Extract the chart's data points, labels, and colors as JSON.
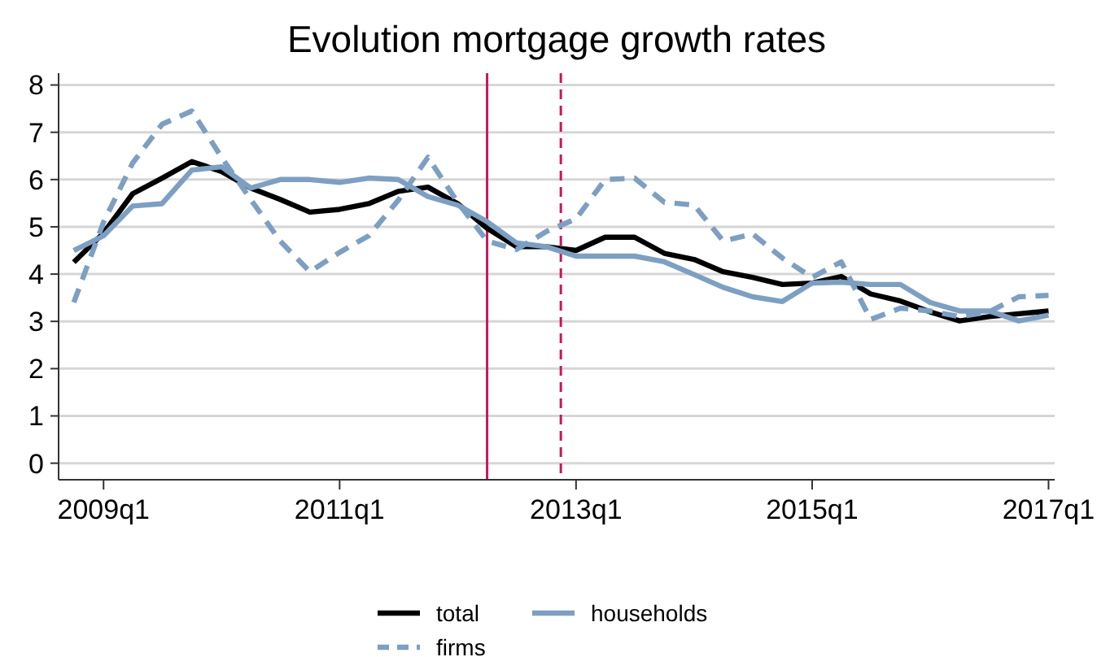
{
  "chart_data": {
    "type": "line",
    "title": "Evolution mortgage growth rates",
    "x": [
      "2008-10",
      "2009-01",
      "2009-04",
      "2009-07",
      "2009-10",
      "2010-01",
      "2010-04",
      "2010-07",
      "2010-10",
      "2011-01",
      "2011-04",
      "2011-07",
      "2011-10",
      "2012-01",
      "2012-04",
      "2012-07",
      "2012-10",
      "2013-01",
      "2013-04",
      "2013-07",
      "2013-10",
      "2014-01",
      "2014-04",
      "2014-07",
      "2014-10",
      "2015-01",
      "2015-04",
      "2015-07",
      "2015-10",
      "2016-01",
      "2016-04",
      "2016-07",
      "2016-10",
      "2017-01"
    ],
    "series": [
      {
        "name": "total",
        "color": "#000000",
        "line_style": "solid",
        "values": [
          4.25,
          4.87,
          5.7,
          6.03,
          6.38,
          6.17,
          5.82,
          5.58,
          5.31,
          5.37,
          5.49,
          5.75,
          5.84,
          5.49,
          4.97,
          4.58,
          4.58,
          4.5,
          4.78,
          4.78,
          4.44,
          4.31,
          4.05,
          3.93,
          3.78,
          3.81,
          3.95,
          3.58,
          3.43,
          3.2,
          3.01,
          3.1,
          3.16,
          3.22
        ]
      },
      {
        "name": "firms",
        "color": "#7d9fc2",
        "line_style": "dashed",
        "values": [
          3.4,
          5.1,
          6.35,
          7.17,
          7.45,
          6.47,
          5.58,
          4.7,
          4.05,
          4.46,
          4.81,
          5.56,
          6.47,
          5.52,
          4.7,
          4.52,
          4.9,
          5.17,
          6.0,
          6.03,
          5.52,
          5.46,
          4.7,
          4.85,
          4.34,
          3.93,
          4.26,
          3.04,
          3.28,
          3.22,
          3.1,
          3.2,
          3.52,
          3.55
        ]
      },
      {
        "name": "households",
        "color": "#7d9fc2",
        "line_style": "solid",
        "values": [
          4.5,
          4.81,
          5.44,
          5.49,
          6.2,
          6.27,
          5.82,
          6.0,
          6.0,
          5.94,
          6.03,
          6.0,
          5.64,
          5.46,
          5.11,
          4.66,
          4.58,
          4.38,
          4.38,
          4.38,
          4.26,
          3.99,
          3.72,
          3.52,
          3.42,
          3.81,
          3.83,
          3.78,
          3.78,
          3.4,
          3.22,
          3.22,
          3.01,
          3.13
        ]
      }
    ],
    "xlim": [
      "2008-08-15",
      "2017-01-20"
    ],
    "xticks": [
      {
        "value": "2009-01",
        "label": "2009q1"
      },
      {
        "value": "2011-01",
        "label": "2011q1"
      },
      {
        "value": "2013-01",
        "label": "2013q1"
      },
      {
        "value": "2015-01",
        "label": "2015q1"
      },
      {
        "value": "2017-01",
        "label": "2017q1"
      }
    ],
    "ylim": [
      -0.35,
      8.25
    ],
    "yticks": [
      0,
      1,
      2,
      3,
      4,
      5,
      6,
      7,
      8
    ],
    "grid": "y",
    "legend": "bottom",
    "marker": "none",
    "ref_lines": [
      {
        "axis": "x",
        "value": "2012-04",
        "color": "#c8175d",
        "line_style": "solid"
      },
      {
        "axis": "x",
        "value": "2012-11-15",
        "color": "#c8175d",
        "line_style": "dashed"
      }
    ]
  }
}
